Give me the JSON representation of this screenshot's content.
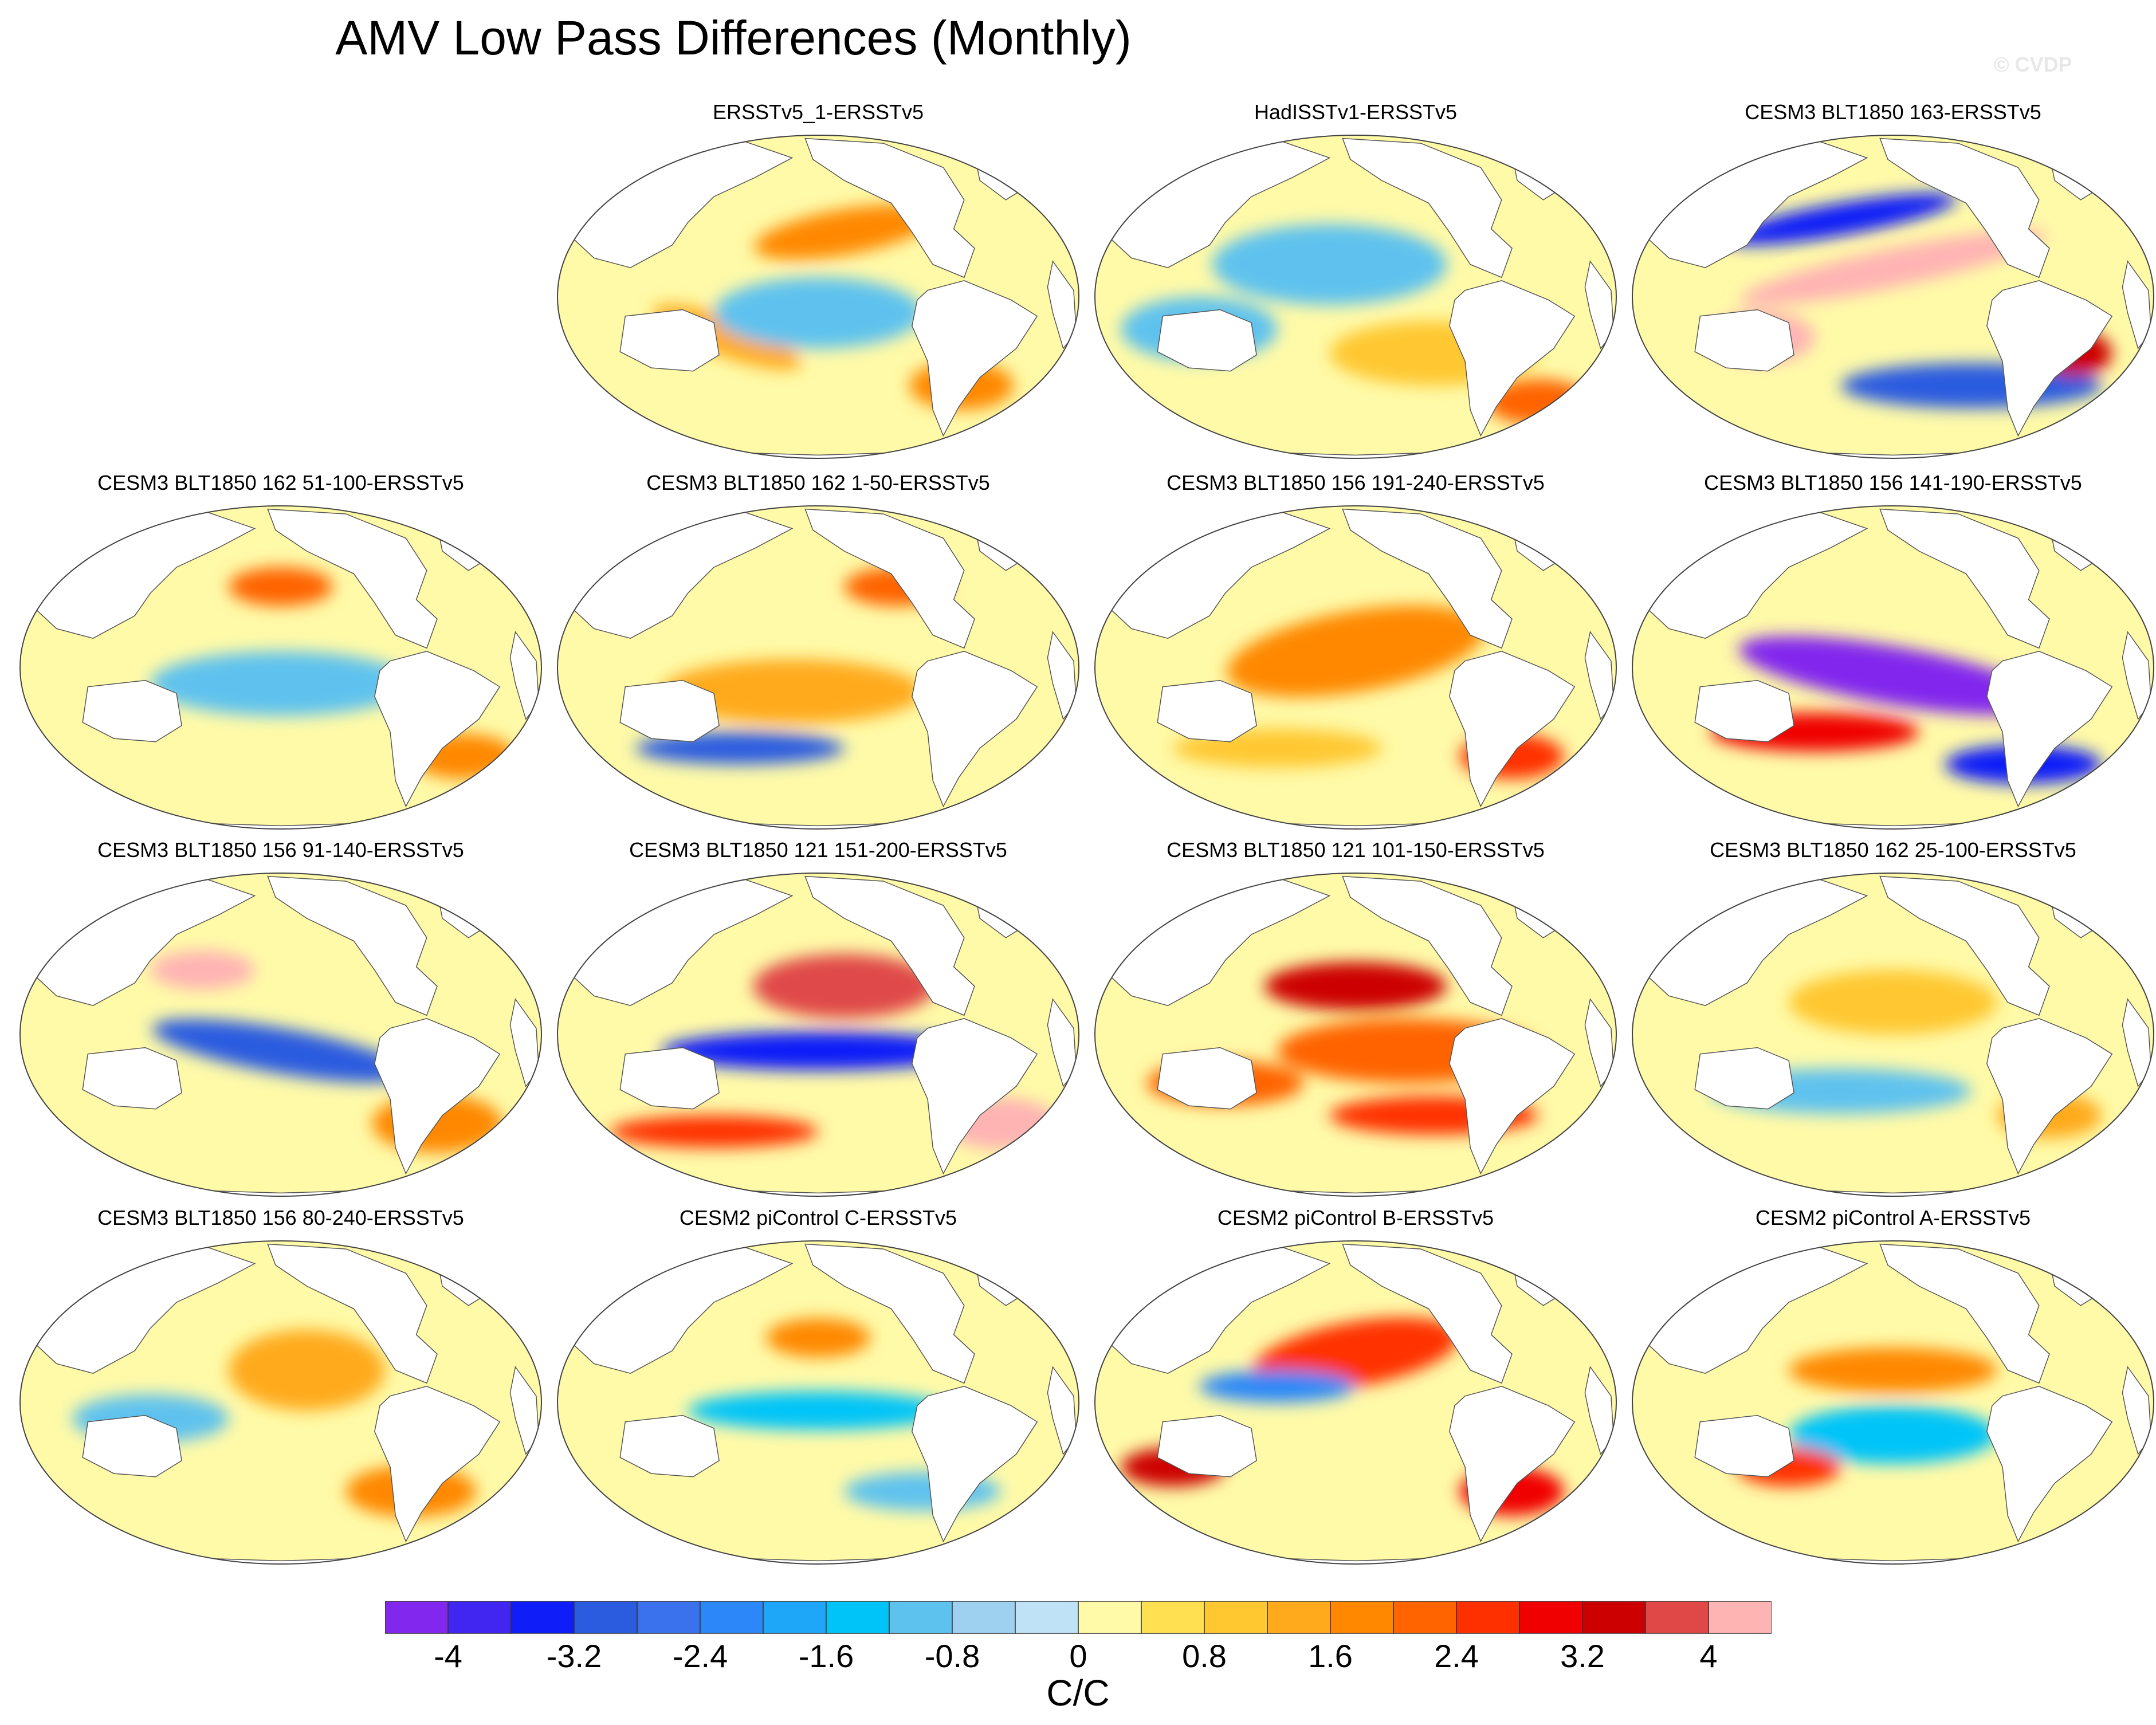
{
  "title": "AMV Low Pass Differences (Monthly)",
  "watermark": "© CVDP",
  "units": "C/C",
  "colorbar": {
    "levels": [
      "-4",
      "-3.2",
      "-2.4",
      "-1.6",
      "-0.8",
      "0",
      "0.8",
      "1.6",
      "2.4",
      "3.2",
      "4"
    ],
    "colors": [
      "#8228ee",
      "#4125f0",
      "#0f1ef8",
      "#2b5ce0",
      "#3a72ee",
      "#2c88f8",
      "#1ea6f8",
      "#00c4f8",
      "#5ec2ee",
      "#9ed0f0",
      "#bfe2f6",
      "#fffaa8",
      "#ffe050",
      "#ffc830",
      "#ffaa1c",
      "#ff8800",
      "#ff6400",
      "#ff3000",
      "#f00000",
      "#cc0000",
      "#e04848",
      "#ffb4b4"
    ]
  },
  "panels": [
    {
      "title": "ERSSTv5_1-ERSSTv5"
    },
    {
      "title": "HadISSTv1-ERSSTv5"
    },
    {
      "title": "CESM3 BLT1850 163-ERSSTv5"
    },
    {
      "title": "CESM3 BLT1850 162 51-100-ERSSTv5"
    },
    {
      "title": "CESM3 BLT1850 162 1-50-ERSSTv5"
    },
    {
      "title": "CESM3 BLT1850 156 191-240-ERSSTv5"
    },
    {
      "title": "CESM3 BLT1850 156 141-190-ERSSTv5"
    },
    {
      "title": "CESM3 BLT1850 156 91-140-ERSSTv5"
    },
    {
      "title": "CESM3 BLT1850 121 151-200-ERSSTv5"
    },
    {
      "title": "CESM3 BLT1850 121 101-150-ERSSTv5"
    },
    {
      "title": "CESM3 BLT1850 162 25-100-ERSSTv5"
    },
    {
      "title": "CESM3 BLT1850 156 80-240-ERSSTv5"
    },
    {
      "title": "CESM2 piControl C-ERSSTv5"
    },
    {
      "title": "CESM2 piControl B-ERSSTv5"
    },
    {
      "title": "CESM2 piControl A-ERSSTv5"
    }
  ]
}
